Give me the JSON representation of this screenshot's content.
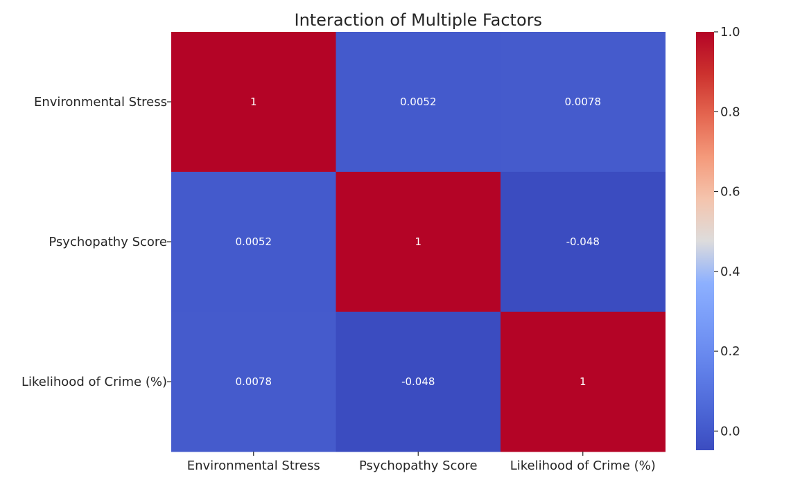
{
  "chart_data": {
    "type": "heatmap",
    "title": "Interaction of Multiple Factors",
    "xlabel": "",
    "ylabel": "",
    "row_labels": [
      "Environmental Stress",
      "Psychopathy Score",
      "Likelihood of Crime (%)"
    ],
    "column_labels": [
      "Environmental Stress",
      "Psychopathy Score",
      "Likelihood of Crime (%)"
    ],
    "values": [
      [
        1,
        0.0052,
        0.0078
      ],
      [
        0.0052,
        1,
        -0.048
      ],
      [
        0.0078,
        -0.048,
        1
      ]
    ],
    "cell_labels": [
      [
        "1",
        "0.0052",
        "0.0078"
      ],
      [
        "0.0052",
        "1",
        "-0.048"
      ],
      [
        "0.0078",
        "-0.048",
        "1"
      ]
    ],
    "colorscale": "coolwarm",
    "colorbar": {
      "range": [
        -0.048,
        1.0
      ],
      "ticks": [
        0.0,
        0.2,
        0.4,
        0.6,
        0.8,
        1.0
      ],
      "tick_labels": [
        "0.0",
        "0.2",
        "0.4",
        "0.6",
        "0.8",
        "1.0"
      ]
    },
    "colors": {
      "low": "#3b4cc0",
      "high": "#b40426"
    }
  }
}
